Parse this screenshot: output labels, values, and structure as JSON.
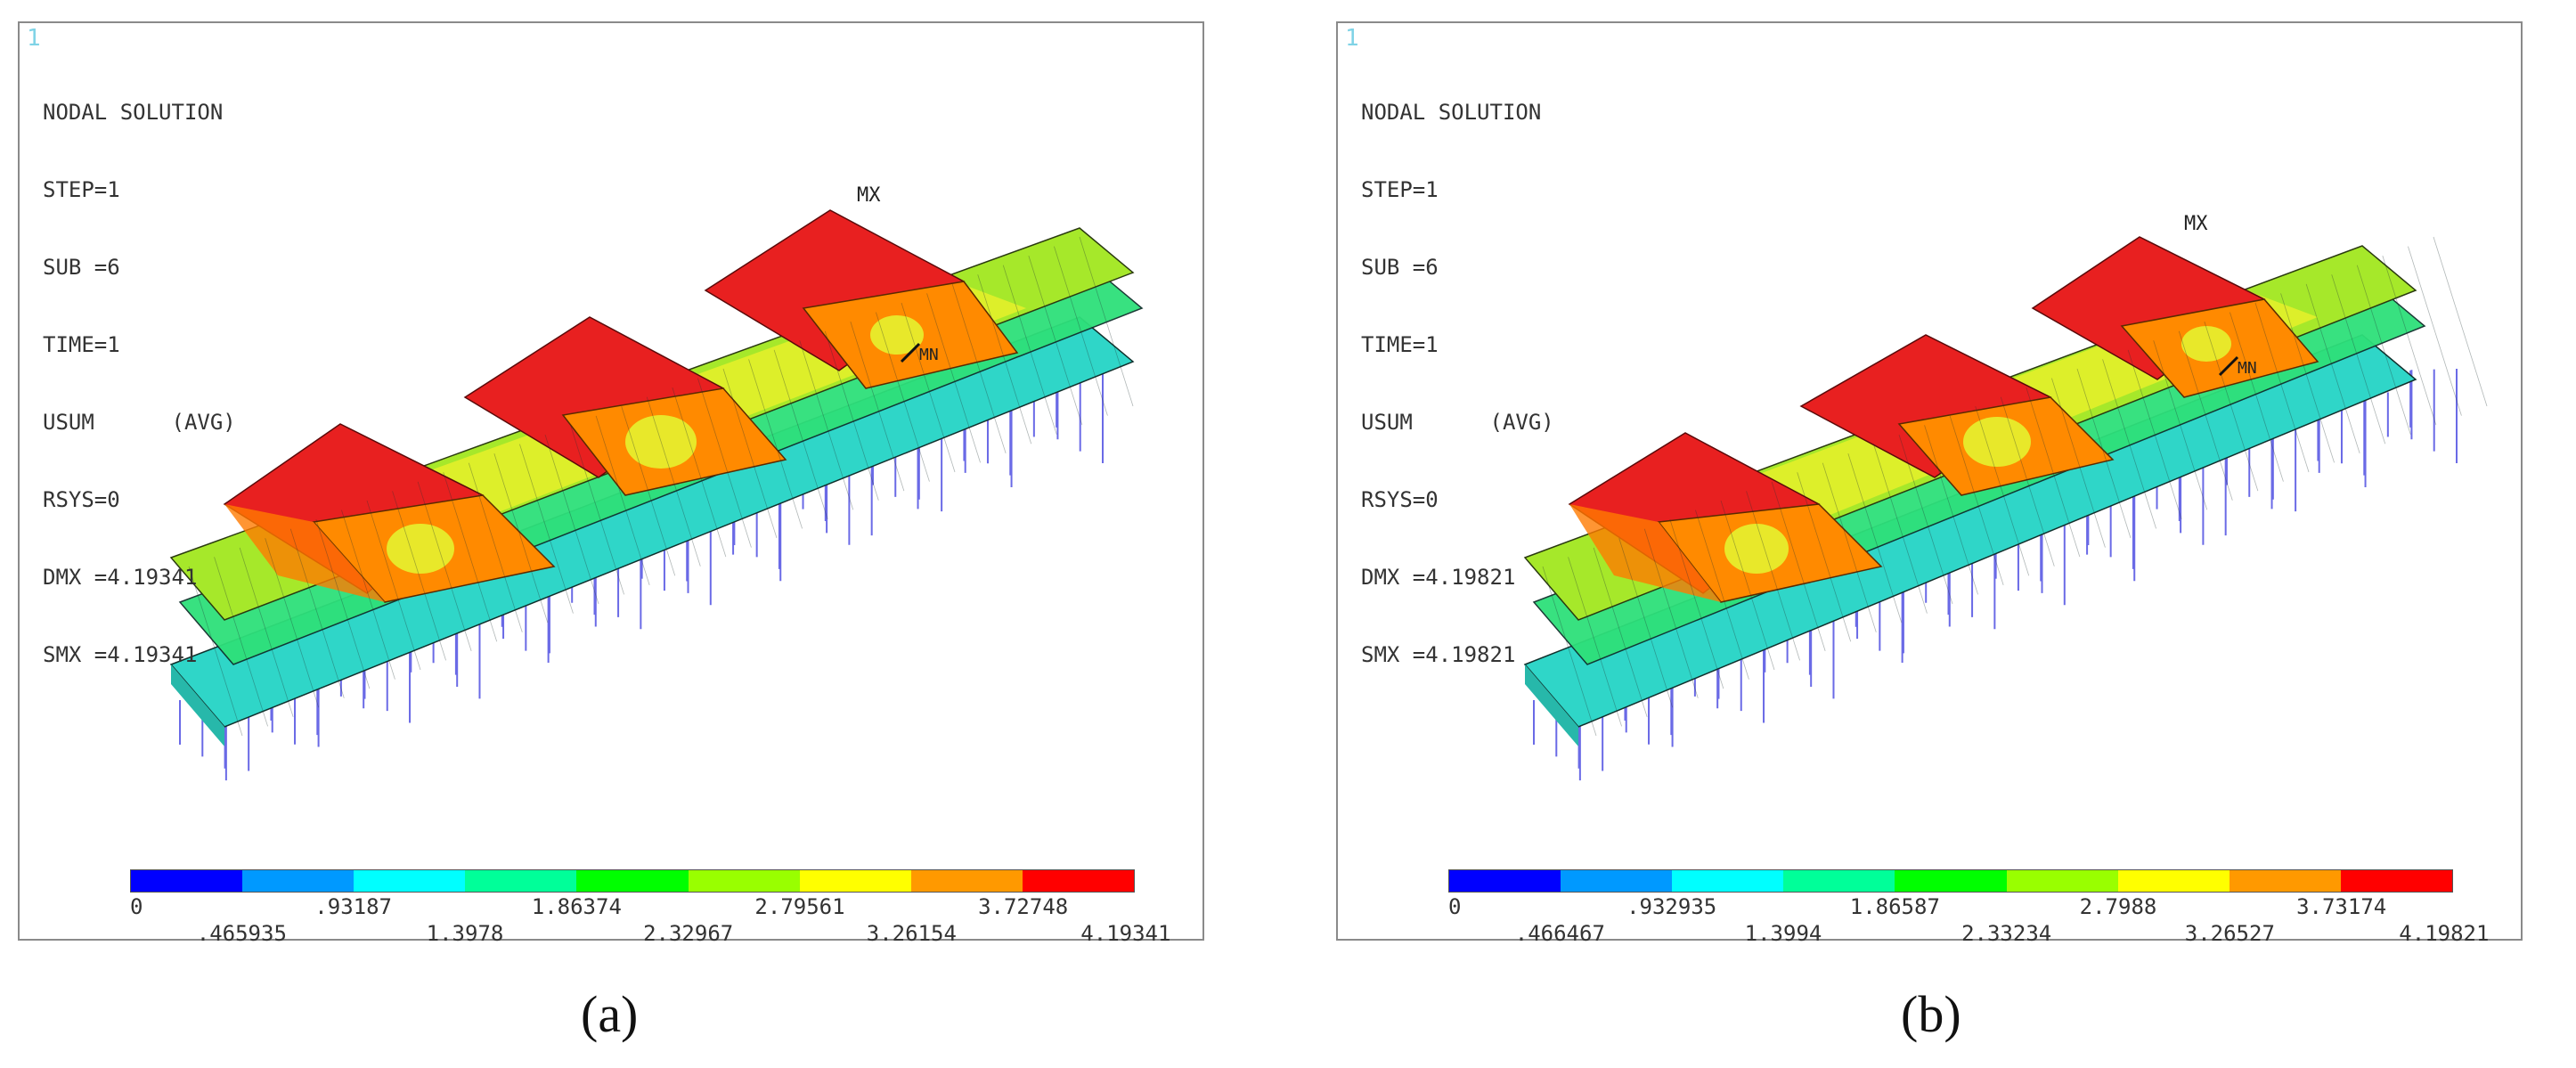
{
  "colormap": [
    "#0000ff",
    "#0099ff",
    "#00ffff",
    "#00ff99",
    "#00ff00",
    "#99ff00",
    "#ffff00",
    "#ff9900",
    "#ff0000"
  ],
  "panels": [
    {
      "id": "a",
      "corner": "1",
      "info": {
        "title": "NODAL SOLUTION",
        "step": "STEP=1",
        "sub": "SUB =6",
        "time": "TIME=1",
        "usum": "USUM      (AVG)",
        "rsys": "RSYS=0",
        "dmx": "DMX =4.19341",
        "smx": "SMX =4.19341"
      },
      "mx_label": "MX",
      "mn_label": "MN",
      "legend": [
        {
          "text": "0",
          "row": "top"
        },
        {
          "text": ".465935",
          "row": "bottom"
        },
        {
          "text": ".93187",
          "row": "top"
        },
        {
          "text": "1.3978",
          "row": "bottom"
        },
        {
          "text": "1.86374",
          "row": "top"
        },
        {
          "text": "2.32967",
          "row": "bottom"
        },
        {
          "text": "2.79561",
          "row": "top"
        },
        {
          "text": "3.26154",
          "row": "bottom"
        },
        {
          "text": "3.72748",
          "row": "top"
        },
        {
          "text": "4.19341",
          "row": "bottom"
        }
      ],
      "caption": "(a)"
    },
    {
      "id": "b",
      "corner": "1",
      "info": {
        "title": "NODAL SOLUTION",
        "step": "STEP=1",
        "sub": "SUB =6",
        "time": "TIME=1",
        "usum": "USUM      (AVG)",
        "rsys": "RSYS=0",
        "dmx": "DMX =4.19821",
        "smx": "SMX =4.19821"
      },
      "mx_label": "MX",
      "mn_label": "MN",
      "legend": [
        {
          "text": "0",
          "row": "top"
        },
        {
          "text": ".466467",
          "row": "bottom"
        },
        {
          "text": ".932935",
          "row": "top"
        },
        {
          "text": "1.3994",
          "row": "bottom"
        },
        {
          "text": "1.86587",
          "row": "top"
        },
        {
          "text": "2.33234",
          "row": "bottom"
        },
        {
          "text": "2.7988",
          "row": "top"
        },
        {
          "text": "3.26527",
          "row": "bottom"
        },
        {
          "text": "3.73174",
          "row": "top"
        },
        {
          "text": "4.19821",
          "row": "bottom"
        }
      ],
      "caption": "(b)"
    }
  ]
}
